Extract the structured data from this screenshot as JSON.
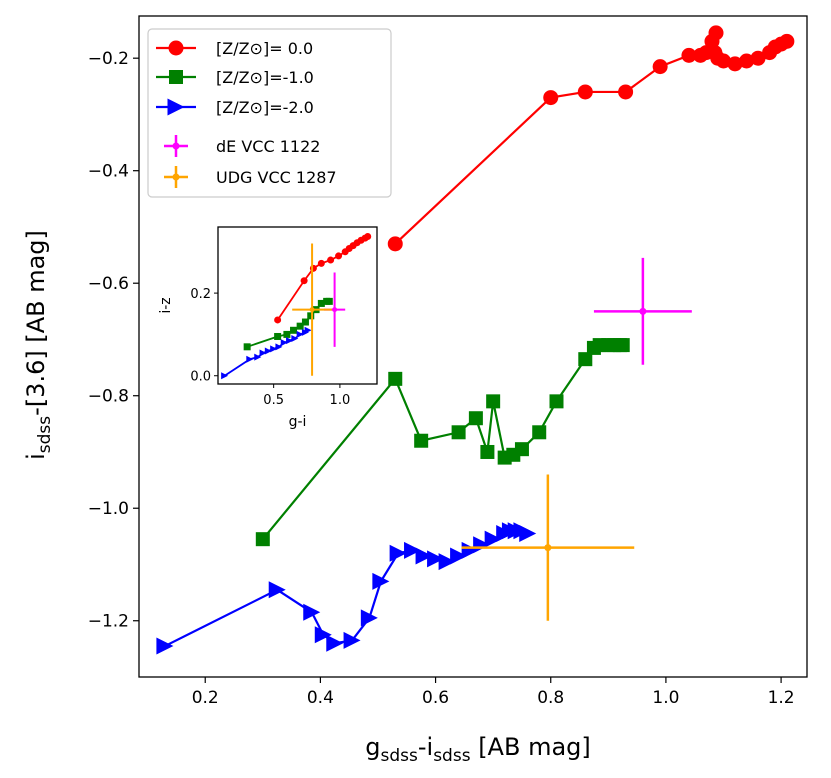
{
  "chart_data": {
    "type": "scatter",
    "xlabel": "gsdss-isdss [AB mag]",
    "xlabel_parts": {
      "a": "g",
      "a_sub": "sdss",
      "mid": "-i",
      "b_sub": "sdss",
      "tail": " [AB mag]"
    },
    "ylabel": "isdss-[3.6] [AB mag]",
    "ylabel_parts": {
      "a": "i",
      "a_sub": "sdss",
      "tail": "-[3.6] [AB mag]"
    },
    "xlim": [
      0.085,
      1.245
    ],
    "ylim": [
      -1.3,
      -0.125
    ],
    "xticks": [
      0.2,
      0.4,
      0.6,
      0.8,
      1.0,
      1.2
    ],
    "xtick_labels": [
      "0.2",
      "0.4",
      "0.6",
      "0.8",
      "1.0",
      "1.2"
    ],
    "yticks": [
      -1.2,
      -1.0,
      -0.8,
      -0.6,
      -0.4,
      -0.2
    ],
    "ytick_labels": [
      "−1.2",
      "−1.0",
      "−0.8",
      "−0.6",
      "−0.4",
      "−0.2"
    ],
    "grid": false,
    "legend_position": "top-left",
    "series": [
      {
        "name": "[Z/Z⊙]= 0.0",
        "color": "#ff0000",
        "marker": "circle",
        "x": [
          0.53,
          0.8,
          0.86,
          0.93,
          0.99,
          1.04,
          1.06,
          1.07,
          1.08,
          1.087,
          1.085,
          1.09,
          1.1,
          1.12,
          1.14,
          1.16,
          1.18,
          1.19,
          1.2,
          1.21
        ],
        "y": [
          -0.53,
          -0.27,
          -0.26,
          -0.26,
          -0.215,
          -0.195,
          -0.195,
          -0.19,
          -0.17,
          -0.155,
          -0.19,
          -0.2,
          -0.205,
          -0.21,
          -0.205,
          -0.2,
          -0.19,
          -0.18,
          -0.175,
          -0.17
        ]
      },
      {
        "name": "[Z/Z⊙]=-1.0",
        "color": "#008000",
        "marker": "square",
        "x": [
          0.3,
          0.53,
          0.575,
          0.64,
          0.67,
          0.69,
          0.7,
          0.72,
          0.735,
          0.75,
          0.78,
          0.81,
          0.86,
          0.875,
          0.885,
          0.9,
          0.91,
          0.92,
          0.925
        ],
        "y": [
          -1.055,
          -0.77,
          -0.88,
          -0.865,
          -0.84,
          -0.9,
          -0.81,
          -0.91,
          -0.905,
          -0.895,
          -0.865,
          -0.81,
          -0.735,
          -0.715,
          -0.71,
          -0.71,
          -0.71,
          -0.71,
          -0.71
        ]
      },
      {
        "name": "[Z/Z⊙]=-2.0",
        "color": "#0000ff",
        "marker": "triangle-right",
        "x": [
          0.13,
          0.325,
          0.385,
          0.405,
          0.425,
          0.455,
          0.485,
          0.505,
          0.535,
          0.56,
          0.58,
          0.6,
          0.62,
          0.64,
          0.66,
          0.68,
          0.7,
          0.72,
          0.73,
          0.74,
          0.75,
          0.76
        ],
        "y": [
          -1.245,
          -1.145,
          -1.185,
          -1.225,
          -1.24,
          -1.235,
          -1.195,
          -1.13,
          -1.08,
          -1.075,
          -1.085,
          -1.09,
          -1.095,
          -1.085,
          -1.075,
          -1.065,
          -1.055,
          -1.045,
          -1.04,
          -1.04,
          -1.04,
          -1.045
        ]
      }
    ],
    "points": [
      {
        "name": "dE VCC 1122",
        "color": "#ff00ff",
        "x": 0.96,
        "y": -0.65,
        "xerr": 0.085,
        "yerr": 0.095
      },
      {
        "name": "UDG VCC 1287",
        "color": "#ffa500",
        "x": 0.795,
        "y": -1.07,
        "xerr": 0.15,
        "yerr": 0.13
      }
    ],
    "inset": {
      "xlabel": "g-i",
      "ylabel": "i-z",
      "xlim": [
        0.08,
        1.28
      ],
      "ylim": [
        -0.02,
        0.36
      ],
      "xticks": [
        0.5,
        1.0
      ],
      "xtick_labels": [
        "0.5",
        "1.0"
      ],
      "yticks": [
        0.0,
        0.2
      ],
      "ytick_labels": [
        "0.0",
        "0.2"
      ],
      "series": [
        {
          "color": "#ff0000",
          "marker": "circle",
          "x": [
            0.53,
            0.73,
            0.8,
            0.86,
            0.93,
            0.99,
            1.04,
            1.07,
            1.1,
            1.13,
            1.16,
            1.19,
            1.21
          ],
          "y": [
            0.135,
            0.23,
            0.26,
            0.272,
            0.28,
            0.29,
            0.3,
            0.308,
            0.315,
            0.322,
            0.328,
            0.333,
            0.337
          ]
        },
        {
          "color": "#008000",
          "marker": "square",
          "x": [
            0.3,
            0.53,
            0.6,
            0.65,
            0.7,
            0.74,
            0.78,
            0.82,
            0.86,
            0.9,
            0.92
          ],
          "y": [
            0.07,
            0.095,
            0.1,
            0.11,
            0.12,
            0.13,
            0.145,
            0.16,
            0.175,
            0.18,
            0.18
          ]
        },
        {
          "color": "#0000ff",
          "marker": "triangle-right",
          "x": [
            0.13,
            0.32,
            0.38,
            0.42,
            0.46,
            0.5,
            0.54,
            0.58,
            0.62,
            0.66,
            0.7,
            0.74,
            0.76
          ],
          "y": [
            0.0,
            0.04,
            0.045,
            0.055,
            0.06,
            0.065,
            0.07,
            0.08,
            0.085,
            0.09,
            0.1,
            0.105,
            0.11
          ]
        }
      ],
      "points": [
        {
          "color": "#ff00ff",
          "x": 0.96,
          "y": 0.16,
          "xerr": 0.08,
          "yerr": 0.09
        },
        {
          "color": "#ffa500",
          "x": 0.79,
          "y": 0.16,
          "xerr": 0.15,
          "yerr": 0.16
        }
      ]
    }
  }
}
